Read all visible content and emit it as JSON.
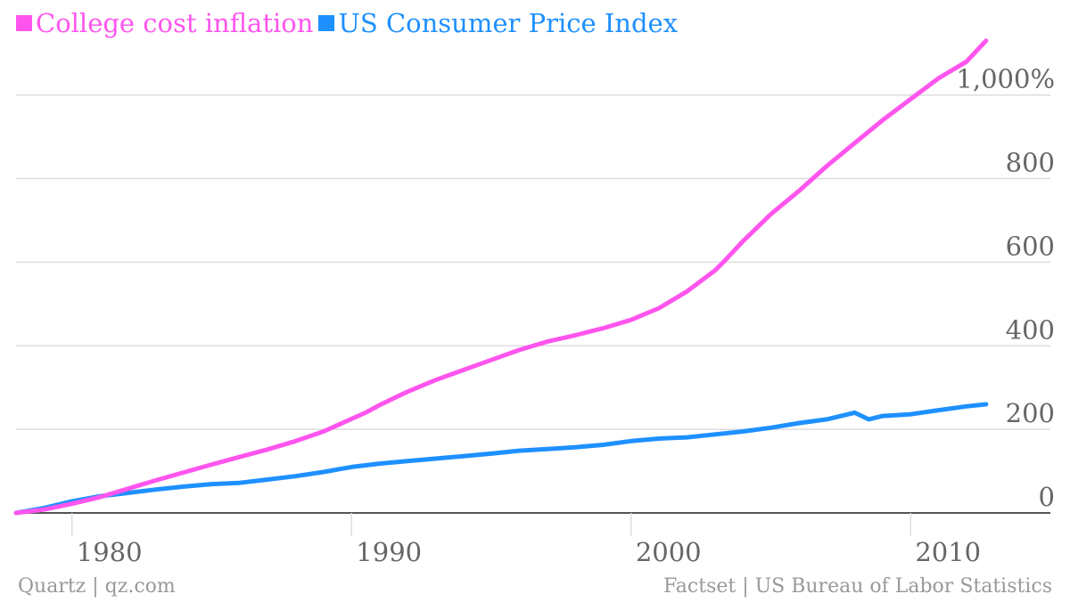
{
  "colors": {
    "college": "#ff55ee",
    "cpi": "#1e90ff",
    "grid": "#dddddd",
    "axis": "#555555"
  },
  "footer": {
    "left": "Quartz | qz.com",
    "right": "Factset | US Bureau of Labor Statistics"
  },
  "chart_data": {
    "type": "line",
    "title": "",
    "xlabel": "",
    "ylabel": "",
    "xlim": [
      1978,
      2015
    ],
    "ylim": [
      0,
      1100
    ],
    "grid": true,
    "legend": "top-left",
    "x_ticks": [
      1980,
      1990,
      2000,
      2010
    ],
    "x_tick_labels": [
      "1980",
      "1990",
      "2000",
      "2010"
    ],
    "y_ticks": [
      0,
      200,
      400,
      600,
      800,
      1000
    ],
    "y_tick_labels": [
      "0",
      "200",
      "400",
      "600",
      "800",
      "1,000%"
    ],
    "series": [
      {
        "name": "College cost inflation",
        "color": "#ff55ee",
        "x": [
          1978,
          1979,
          1980,
          1981,
          1982,
          1983,
          1984,
          1985,
          1986,
          1987,
          1988,
          1989,
          1990,
          1990.5,
          1991,
          1992,
          1993,
          1994,
          1995,
          1996,
          1997,
          1998,
          1999,
          2000,
          2001,
          2002,
          2003,
          2003.3,
          2004,
          2005,
          2006,
          2007,
          2008,
          2009,
          2010,
          2011,
          2012,
          2012.7
        ],
        "y": [
          0,
          8,
          22,
          38,
          58,
          78,
          97,
          116,
          134,
          152,
          172,
          195,
          225,
          240,
          258,
          290,
          318,
          342,
          366,
          390,
          410,
          425,
          442,
          462,
          490,
          530,
          580,
          600,
          650,
          715,
          770,
          830,
          885,
          940,
          990,
          1040,
          1080,
          1130
        ]
      },
      {
        "name": "US Consumer Price Index",
        "color": "#1e90ff",
        "x": [
          1978,
          1979,
          1980,
          1981,
          1982,
          1983,
          1984,
          1985,
          1986,
          1987,
          1988,
          1989,
          1990,
          1991,
          1992,
          1993,
          1994,
          1995,
          1996,
          1997,
          1998,
          1999,
          2000,
          2001,
          2002,
          2003,
          2004,
          2005,
          2006,
          2007,
          2008,
          2008.5,
          2009,
          2010,
          2011,
          2012,
          2012.7
        ],
        "y": [
          0,
          12,
          28,
          40,
          48,
          56,
          63,
          69,
          72,
          80,
          88,
          98,
          110,
          118,
          124,
          130,
          136,
          142,
          149,
          153,
          157,
          163,
          172,
          178,
          181,
          188,
          195,
          204,
          215,
          224,
          240,
          224,
          232,
          236,
          246,
          255,
          260
        ]
      }
    ]
  }
}
